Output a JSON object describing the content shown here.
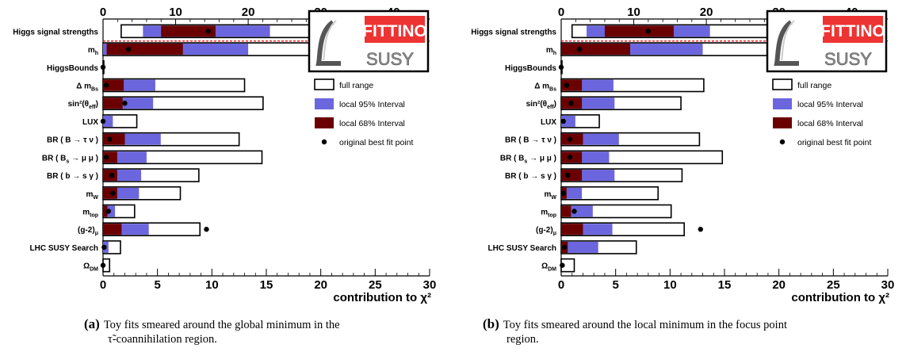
{
  "legend": {
    "full_range": "full range",
    "interval95": "local 95% Interval",
    "interval68": "local 68% Interval",
    "best_fit": "original best fit point"
  },
  "logo": {
    "word1": "FITTINO",
    "word2": "SUSY"
  },
  "xlabel": "contribution to χ²",
  "colors": {
    "full": "#ffffff",
    "i95": "#6b66dd",
    "i68": "#6b0000",
    "logo_red": "#ee3333",
    "dashed": "#ee0000"
  },
  "chart_data": [
    {
      "type": "bar",
      "subtype": "range-bars",
      "xlim": [
        0,
        30
      ],
      "top_axis": {
        "xlim": [
          0,
          45
        ],
        "ticks": [
          0,
          10,
          20,
          30,
          40
        ]
      },
      "bottom_ticks": [
        0,
        5,
        10,
        15,
        20,
        25,
        30
      ],
      "caption_tag": "(a)",
      "caption_line1": "Toy fits smeared around the global minimum in the",
      "caption_line2": "τ̃-coannihilation region.",
      "rows": [
        {
          "label": "Higgs signal strengths",
          "full": [
            2.5,
            43.0
          ],
          "i95": [
            5.5,
            23.0
          ],
          "i68": [
            8.0,
            15.5
          ],
          "best": 14.5,
          "axis": "top"
        },
        {
          "label": "m_h",
          "full": [
            0.0,
            31.5
          ],
          "i95": [
            0.0,
            20.0
          ],
          "i68": [
            0.5,
            11.0
          ],
          "best": 3.5,
          "axis": "top"
        },
        {
          "label": "HiggsBounds",
          "full": [
            0.0,
            0.0
          ],
          "i95": null,
          "i68": null,
          "best": 0.0
        },
        {
          "label": "Δ m_Bs",
          "full": [
            0.0,
            13.0
          ],
          "i95": [
            0.0,
            4.8
          ],
          "i68": [
            0.0,
            1.9
          ],
          "best": 0.3
        },
        {
          "label": "sin²(θ_eff)",
          "full": [
            0.0,
            14.7
          ],
          "i95": [
            0.0,
            4.6
          ],
          "i68": [
            0.0,
            1.8
          ],
          "best": 2.0
        },
        {
          "label": "LUX",
          "full": [
            0.0,
            3.1
          ],
          "i95": [
            0.0,
            0.9
          ],
          "i68": null,
          "best": 0.0
        },
        {
          "label": "BR ( B → τ ν )",
          "full": [
            0.0,
            12.5
          ],
          "i95": [
            0.0,
            5.3
          ],
          "i68": [
            0.0,
            2.0
          ],
          "best": 0.6
        },
        {
          "label": "BR ( B_s → μ μ )",
          "full": [
            0.0,
            14.6
          ],
          "i95": [
            0.0,
            4.0
          ],
          "i68": [
            0.0,
            1.3
          ],
          "best": 0.3
        },
        {
          "label": "BR ( b → s γ )",
          "full": [
            0.0,
            8.8
          ],
          "i95": [
            0.0,
            3.5
          ],
          "i68": [
            0.0,
            1.3
          ],
          "best": 0.8
        },
        {
          "label": "m_W",
          "full": [
            0.0,
            7.1
          ],
          "i95": [
            0.0,
            3.3
          ],
          "i68": [
            0.0,
            1.3
          ],
          "best": 0.9
        },
        {
          "label": "m_top",
          "full": [
            0.0,
            2.9
          ],
          "i95": [
            0.0,
            1.1
          ],
          "i68": [
            0.0,
            0.4
          ],
          "best": 0.5
        },
        {
          "label": "(g-2)_μ",
          "full": [
            0.0,
            8.9
          ],
          "i95": [
            0.0,
            4.2
          ],
          "i68": [
            0.0,
            1.7
          ],
          "best": 9.5
        },
        {
          "label": "LHC SUSY Search",
          "full": [
            0.0,
            1.6
          ],
          "i95": [
            0.0,
            0.5
          ],
          "i68": null,
          "best": 0.1
        },
        {
          "label": "Ω_DM",
          "full": [
            0.0,
            0.6
          ],
          "i95": null,
          "i68": null,
          "best": 0.0
        }
      ]
    },
    {
      "type": "bar",
      "subtype": "range-bars",
      "xlim": [
        0,
        30
      ],
      "top_axis": {
        "xlim": [
          0,
          45
        ],
        "ticks": [
          0,
          10,
          20,
          30,
          40
        ]
      },
      "bottom_ticks": [
        0,
        5,
        10,
        15,
        20,
        25,
        30
      ],
      "caption_tag": "(b)",
      "caption_line1": "Toy fits smeared around the local minimum in the focus point",
      "caption_line2": "region.",
      "rows": [
        {
          "label": "Higgs signal strengths",
          "full": [
            1.5,
            34.5
          ],
          "i95": [
            3.5,
            20.5
          ],
          "i68": [
            6.0,
            15.5
          ],
          "best": 12.0,
          "axis": "top"
        },
        {
          "label": "m_h",
          "full": [
            0.0,
            30.5
          ],
          "i95": [
            0.0,
            19.5
          ],
          "i68": [
            0.0,
            9.5
          ],
          "best": 2.5,
          "axis": "top"
        },
        {
          "label": "HiggsBounds",
          "full": [
            0.0,
            0.0
          ],
          "i95": null,
          "i68": null,
          "best": 0.0
        },
        {
          "label": "Δ m_Bs",
          "full": [
            0.0,
            13.1
          ],
          "i95": [
            0.0,
            4.8
          ],
          "i68": [
            0.0,
            1.9
          ],
          "best": 0.5
        },
        {
          "label": "sin²(θ_eff)",
          "full": [
            0.0,
            11.0
          ],
          "i95": [
            0.0,
            4.9
          ],
          "i68": [
            0.0,
            1.9
          ],
          "best": 0.9
        },
        {
          "label": "LUX",
          "full": [
            0.0,
            3.5
          ],
          "i95": [
            0.0,
            1.3
          ],
          "i68": null,
          "best": 0.2
        },
        {
          "label": "BR ( B → τ ν )",
          "full": [
            0.0,
            12.7
          ],
          "i95": [
            0.0,
            5.3
          ],
          "i68": [
            0.0,
            2.0
          ],
          "best": 0.8
        },
        {
          "label": "BR ( B_s → μ μ )",
          "full": [
            0.0,
            14.8
          ],
          "i95": [
            0.0,
            4.4
          ],
          "i68": [
            0.0,
            1.9
          ],
          "best": 0.8
        },
        {
          "label": "BR ( b → s γ )",
          "full": [
            0.0,
            11.1
          ],
          "i95": [
            0.0,
            4.9
          ],
          "i68": [
            0.0,
            1.9
          ],
          "best": 0.6
        },
        {
          "label": "m_W",
          "full": [
            0.0,
            8.9
          ],
          "i95": [
            0.0,
            1.9
          ],
          "i68": [
            0.0,
            0.5
          ],
          "best": 0.2
        },
        {
          "label": "m_top",
          "full": [
            0.0,
            10.1
          ],
          "i95": [
            0.0,
            2.9
          ],
          "i68": [
            0.0,
            0.9
          ],
          "best": 1.2
        },
        {
          "label": "(g-2)_μ",
          "full": [
            0.0,
            11.3
          ],
          "i95": [
            0.0,
            4.7
          ],
          "i68": [
            0.0,
            2.0
          ],
          "best": 12.8
        },
        {
          "label": "LHC SUSY Search",
          "full": [
            0.0,
            6.9
          ],
          "i95": [
            0.0,
            3.4
          ],
          "i68": [
            0.0,
            0.6
          ],
          "best": 0.3
        },
        {
          "label": "Ω_DM",
          "full": [
            0.0,
            1.2
          ],
          "i95": null,
          "i68": null,
          "best": 0.1
        }
      ]
    }
  ]
}
